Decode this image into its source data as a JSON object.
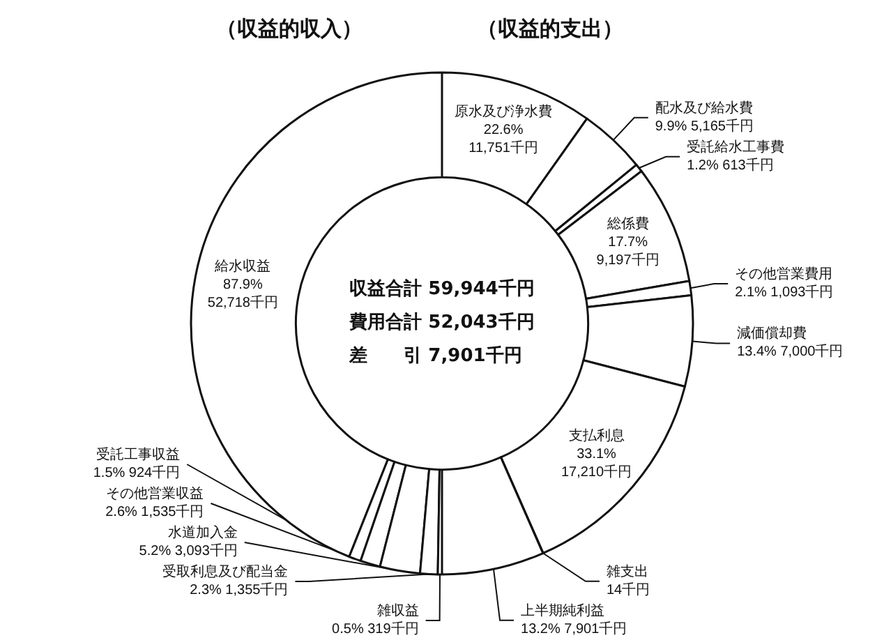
{
  "chart_data": [
    {
      "type": "donut",
      "title": "（収益的収入）",
      "categories": [
        "給水収益",
        "受託工事収益",
        "その他営業収益",
        "水道加入金",
        "受取利息及び配当金",
        "雑収益"
      ],
      "values": [
        52718,
        924,
        1535,
        3093,
        1355,
        319
      ],
      "value_labels": [
        "87.9% 52,718千円",
        "1.5% 924千円",
        "2.6% 1,535千円",
        "5.2% 3,093千円",
        "2.3% 1,355千円",
        "0.5% 319千円"
      ],
      "colors": [
        "#ffffff",
        "#ffffff",
        "#ffffff",
        "#ffffff",
        "#ffffff",
        "#ffffff"
      ],
      "annotations": [
        "収益合計 59,944千円",
        "費用合計 52,043千円",
        "差　　引 7,901千円"
      ],
      "legend": false
    },
    {
      "type": "donut",
      "title": "（収益的支出）",
      "categories": [
        "原水及び浄水費",
        "配水及び給水費",
        "受託給水工事費",
        "総係費",
        "その他営業費用",
        "減価償却費",
        "支払利息",
        "雑支出",
        "上半期純利益"
      ],
      "values": [
        11751,
        5165,
        613,
        9197,
        1093,
        7000,
        17210,
        14,
        7901
      ],
      "value_labels": [
        "22.6% 11,751千円",
        "9.9% 5,165千円",
        "1.2% 613千円",
        "17.7% 9,197千円",
        "2.1% 1,093千円",
        "13.4% 7,000千円",
        "33.1% 17,210千円",
        "14千円",
        "13.2% 7,901千円"
      ],
      "colors": [
        "#ffffff",
        "#ffffff",
        "#ffffff",
        "#ffffff",
        "#ffffff",
        "#ffffff",
        "#ffffff",
        "#ffffff",
        "#ffffff"
      ],
      "legend": false
    }
  ]
}
